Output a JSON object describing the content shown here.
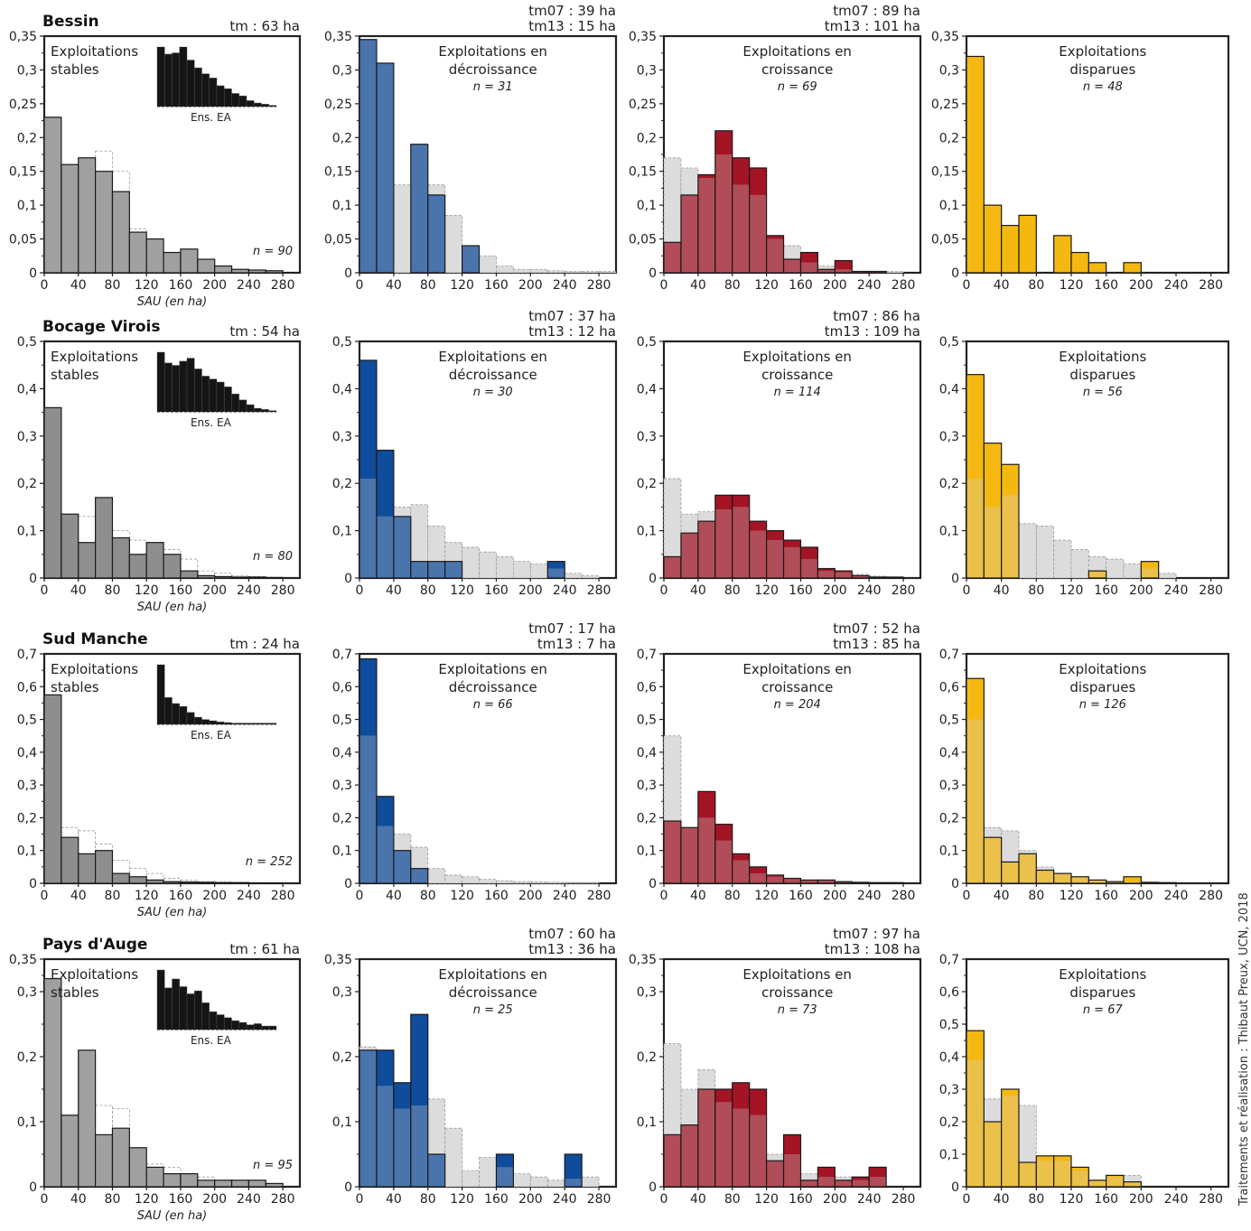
{
  "credit": "Traitements et réalisation : Thibaut Preux, UCN, 2018",
  "chart_data": [
    {
      "type": "bar",
      "row": 0,
      "col": 0,
      "region": "Bessin",
      "tm_lines": [
        "tm : 63 ha"
      ],
      "title": [
        "Exploitations",
        "stables"
      ],
      "title_align": "start",
      "n": "n = 90",
      "xlabel": "SAU (en ha)",
      "inset_label": "Ens. EA",
      "xticks": [
        0,
        40,
        80,
        120,
        160,
        200,
        240,
        280
      ],
      "xlim": [
        0,
        300
      ],
      "ylim": [
        0,
        0.35
      ],
      "yticks": [
        "0",
        "0,05",
        "0,1",
        "0,15",
        "0,2",
        "0,25",
        "0,3",
        "0,35"
      ],
      "color": "#a0a0a0",
      "bin_width": 20,
      "values": [
        0.23,
        0.16,
        0.17,
        0.15,
        0.12,
        0.06,
        0.05,
        0.03,
        0.035,
        0.02,
        0.01,
        0.005,
        0.004,
        0.003
      ],
      "reference": [
        0.23,
        0.16,
        0.17,
        0.18,
        0.15,
        0.065,
        0.05,
        0.03,
        0.035,
        0.02,
        0.01,
        0.005,
        0.004,
        0.003
      ],
      "inset": [
        1.0,
        0.88,
        0.9,
        1.0,
        0.78,
        0.65,
        0.55,
        0.48,
        0.35,
        0.3,
        0.22,
        0.18,
        0.1,
        0.06,
        0.04,
        0.02
      ]
    },
    {
      "type": "bar",
      "row": 0,
      "col": 1,
      "tm_lines": [
        "tm07 : 39 ha",
        "tm13 : 15 ha"
      ],
      "title": [
        "Exploitations en",
        "décroissance"
      ],
      "n": "n = 31",
      "xticks": [
        0,
        40,
        80,
        120,
        160,
        200,
        240,
        280
      ],
      "xlim": [
        0,
        300
      ],
      "ylim": [
        0,
        0.35
      ],
      "yticks": [
        "0",
        "0,05",
        "0,1",
        "0,15",
        "0,2",
        "0,25",
        "0,3",
        "0,35"
      ],
      "color": "#0f4c9c",
      "values": [
        0.345,
        0.31,
        0,
        0.19,
        0.115,
        0,
        0.04,
        0,
        0,
        0,
        0,
        0,
        0,
        0,
        0
      ],
      "reference": [
        0.345,
        0.31,
        0.13,
        0.19,
        0.13,
        0.085,
        0.04,
        0.025,
        0.01,
        0.005,
        0.005,
        0.003,
        0.002,
        0.002,
        0.002
      ]
    },
    {
      "type": "bar",
      "row": 0,
      "col": 2,
      "tm_lines": [
        "tm07 : 89 ha",
        "tm13 : 101 ha"
      ],
      "title": [
        "Exploitations en",
        "croissance"
      ],
      "n": "n = 69",
      "xticks": [
        0,
        40,
        80,
        120,
        160,
        200,
        240,
        280
      ],
      "xlim": [
        0,
        300
      ],
      "ylim": [
        0,
        0.35
      ],
      "yticks": [
        "0",
        "0,05",
        "0,1",
        "0,15",
        "0,2",
        "0,25",
        "0,3",
        "0,35"
      ],
      "color": "#a31424",
      "values": [
        0.045,
        0.115,
        0.145,
        0.21,
        0.17,
        0.155,
        0.055,
        0.02,
        0.03,
        0.005,
        0.018,
        0.002,
        0.002,
        0
      ],
      "reference": [
        0.17,
        0.155,
        0.14,
        0.175,
        0.13,
        0.115,
        0.05,
        0.04,
        0.015,
        0.01,
        0.005,
        0.002,
        0.002,
        0.002
      ]
    },
    {
      "type": "bar",
      "row": 0,
      "col": 3,
      "tm_lines": [],
      "title": [
        "Exploitations",
        "disparues"
      ],
      "n": "n = 48",
      "xticks": [
        0,
        40,
        80,
        120,
        160,
        200,
        240,
        280
      ],
      "xlim": [
        0,
        300
      ],
      "ylim": [
        0,
        0.35
      ],
      "yticks": [
        "0",
        "0,05",
        "0,1",
        "0,15",
        "0,2",
        "0,25",
        "0,3",
        "0,35"
      ],
      "color": "#f5b811",
      "values": [
        0.32,
        0.1,
        0.07,
        0.085,
        0,
        0.055,
        0.03,
        0.015,
        0,
        0.015,
        0,
        0,
        0,
        0
      ],
      "reference": [
        0,
        0,
        0,
        0,
        0,
        0,
        0,
        0,
        0,
        0,
        0,
        0,
        0,
        0
      ]
    },
    {
      "type": "bar",
      "row": 1,
      "col": 0,
      "region": "Bocage Virois",
      "tm_lines": [
        "tm : 54 ha"
      ],
      "title": [
        "Exploitations",
        "stables"
      ],
      "title_align": "start",
      "n": "n = 80",
      "xlabel": "SAU (en ha)",
      "inset_label": "Ens. EA",
      "xticks": [
        0,
        40,
        80,
        120,
        160,
        200,
        240,
        280
      ],
      "xlim": [
        0,
        300
      ],
      "ylim": [
        0,
        0.5
      ],
      "yticks": [
        "0",
        "0,1",
        "0,2",
        "0,3",
        "0,4",
        "0,5"
      ],
      "color": "#8e8e8e",
      "values": [
        0.36,
        0.135,
        0.075,
        0.17,
        0.085,
        0.05,
        0.075,
        0.05,
        0.015,
        0.005,
        0.003,
        0.002,
        0.002,
        0.001
      ],
      "reference": [
        0.21,
        0.135,
        0.13,
        0.17,
        0.1,
        0.08,
        0.075,
        0.06,
        0.04,
        0.015,
        0.01,
        0.005,
        0.003,
        0.002
      ],
      "inset": [
        1.0,
        0.82,
        0.78,
        0.85,
        0.9,
        0.72,
        0.6,
        0.55,
        0.5,
        0.42,
        0.3,
        0.2,
        0.12,
        0.06,
        0.04,
        0.02
      ]
    },
    {
      "type": "bar",
      "row": 1,
      "col": 1,
      "tm_lines": [
        "tm07 : 37 ha",
        "tm13 : 12 ha"
      ],
      "title": [
        "Exploitations en",
        "décroissance"
      ],
      "n": "n = 30",
      "xticks": [
        0,
        40,
        80,
        120,
        160,
        200,
        240,
        280
      ],
      "xlim": [
        0,
        300
      ],
      "ylim": [
        0,
        0.5
      ],
      "yticks": [
        "0",
        "0,1",
        "0,2",
        "0,3",
        "0,4",
        "0,5"
      ],
      "color": "#0f4c9c",
      "values": [
        0.46,
        0.27,
        0.13,
        0.035,
        0.035,
        0.035,
        0,
        0,
        0,
        0,
        0,
        0.035,
        0,
        0
      ],
      "reference": [
        0.21,
        0.13,
        0.15,
        0.155,
        0.11,
        0.075,
        0.065,
        0.055,
        0.045,
        0.035,
        0.03,
        0.02,
        0.01,
        0.005
      ]
    },
    {
      "type": "bar",
      "row": 1,
      "col": 2,
      "tm_lines": [
        "tm07 : 86 ha",
        "tm13 : 109 ha"
      ],
      "title": [
        "Exploitations en",
        "croissance"
      ],
      "n": "n = 114",
      "xticks": [
        0,
        40,
        80,
        120,
        160,
        200,
        240,
        280
      ],
      "xlim": [
        0,
        300
      ],
      "ylim": [
        0,
        0.5
      ],
      "yticks": [
        "0",
        "0,1",
        "0,2",
        "0,3",
        "0,4",
        "0,5"
      ],
      "color": "#a31424",
      "values": [
        0.045,
        0.095,
        0.12,
        0.175,
        0.175,
        0.12,
        0.1,
        0.08,
        0.065,
        0.02,
        0.015,
        0.005,
        0.002,
        0.002
      ],
      "reference": [
        0.21,
        0.135,
        0.14,
        0.145,
        0.15,
        0.1,
        0.08,
        0.065,
        0.04,
        0.015,
        0.012,
        0.008,
        0.004,
        0.002
      ]
    },
    {
      "type": "bar",
      "row": 1,
      "col": 3,
      "tm_lines": [],
      "title": [
        "Exploitations",
        "disparues"
      ],
      "n": "n = 56",
      "xticks": [
        0,
        40,
        80,
        120,
        160,
        200,
        240,
        280
      ],
      "xlim": [
        0,
        300
      ],
      "ylim": [
        0,
        0.5
      ],
      "yticks": [
        "0",
        "0,1",
        "0,2",
        "0,3",
        "0,4",
        "0,5"
      ],
      "color": "#f5b811",
      "values": [
        0.43,
        0.285,
        0.24,
        0,
        0,
        0,
        0,
        0.015,
        0,
        0,
        0.035,
        0
      ],
      "reference": [
        0.21,
        0.15,
        0.175,
        0.115,
        0.11,
        0.08,
        0.06,
        0.045,
        0.04,
        0.03,
        0.02,
        0.01
      ]
    },
    {
      "type": "bar",
      "row": 2,
      "col": 0,
      "region": "Sud Manche",
      "tm_lines": [
        "tm : 24 ha"
      ],
      "title": [
        "Exploitations",
        "stables"
      ],
      "title_align": "start",
      "n": "n = 252",
      "xlabel": "SAU (en ha)",
      "inset_label": "Ens. EA",
      "xticks": [
        0,
        40,
        80,
        120,
        160,
        200,
        240,
        280
      ],
      "xlim": [
        0,
        300
      ],
      "ylim": [
        0,
        0.7
      ],
      "yticks": [
        "0",
        "0,1",
        "0,2",
        "0,3",
        "0,4",
        "0,5",
        "0,6",
        "0,7"
      ],
      "color": "#8e8e8e",
      "values": [
        0.575,
        0.14,
        0.09,
        0.1,
        0.03,
        0.02,
        0.01,
        0.005,
        0.004,
        0.003,
        0.002,
        0.002,
        0.001,
        0.001
      ],
      "reference": [
        0.45,
        0.17,
        0.16,
        0.12,
        0.07,
        0.045,
        0.03,
        0.015,
        0.01,
        0.005,
        0.004,
        0.003,
        0.002,
        0.001
      ],
      "inset": [
        1.0,
        0.45,
        0.35,
        0.3,
        0.2,
        0.12,
        0.08,
        0.06,
        0.04,
        0.03,
        0.02,
        0.02,
        0.02,
        0.02,
        0.02,
        0.02
      ]
    },
    {
      "type": "bar",
      "row": 2,
      "col": 1,
      "tm_lines": [
        "tm07 : 17 ha",
        "tm13 : 7 ha"
      ],
      "title": [
        "Exploitations en",
        "décroissance"
      ],
      "n": "n = 66",
      "xticks": [
        0,
        40,
        80,
        120,
        160,
        200,
        240,
        280
      ],
      "xlim": [
        0,
        300
      ],
      "ylim": [
        0,
        0.7
      ],
      "yticks": [
        "0",
        "0,1",
        "0,2",
        "0,3",
        "0,4",
        "0,5",
        "0,6",
        "0,7"
      ],
      "color": "#0f4c9c",
      "values": [
        0.685,
        0.265,
        0.1,
        0.045,
        0,
        0,
        0,
        0,
        0,
        0,
        0,
        0,
        0,
        0
      ],
      "reference": [
        0.45,
        0.175,
        0.15,
        0.11,
        0.045,
        0.025,
        0.02,
        0.012,
        0.008,
        0.005,
        0.004,
        0.003,
        0.002,
        0.002
      ]
    },
    {
      "type": "bar",
      "row": 2,
      "col": 2,
      "tm_lines": [
        "tm07 : 52 ha",
        "tm13 : 85 ha"
      ],
      "title": [
        "Exploitations en",
        "croissance"
      ],
      "n": "n = 204",
      "xticks": [
        0,
        40,
        80,
        120,
        160,
        200,
        240,
        280
      ],
      "xlim": [
        0,
        300
      ],
      "ylim": [
        0,
        0.7
      ],
      "yticks": [
        "0",
        "0,1",
        "0,2",
        "0,3",
        "0,4",
        "0,5",
        "0,6",
        "0,7"
      ],
      "color": "#a31424",
      "values": [
        0.19,
        0.17,
        0.28,
        0.18,
        0.09,
        0.05,
        0.025,
        0.015,
        0.01,
        0.01,
        0.005,
        0.003,
        0.002,
        0.002
      ],
      "reference": [
        0.45,
        0.17,
        0.2,
        0.13,
        0.07,
        0.03,
        0.02,
        0.015,
        0.01,
        0.008,
        0.005,
        0.003,
        0.002,
        0.002
      ]
    },
    {
      "type": "bar",
      "row": 2,
      "col": 3,
      "tm_lines": [],
      "title": [
        "Exploitations",
        "disparues"
      ],
      "n": "n = 126",
      "xticks": [
        0,
        40,
        80,
        120,
        160,
        200,
        240,
        280
      ],
      "xlim": [
        0,
        300
      ],
      "ylim": [
        0,
        0.7
      ],
      "yticks": [
        "0",
        "0,1",
        "0,2",
        "0,3",
        "0,4",
        "0,5",
        "0,6",
        "0,7"
      ],
      "color": "#f5b811",
      "values": [
        0.625,
        0.14,
        0.065,
        0.09,
        0.04,
        0.03,
        0.02,
        0.01,
        0.005,
        0.02,
        0.003,
        0.002
      ],
      "reference": [
        0.5,
        0.17,
        0.16,
        0.1,
        0.05,
        0.03,
        0.02,
        0.01,
        0.005,
        0.005,
        0.003,
        0.002
      ]
    },
    {
      "type": "bar",
      "row": 3,
      "col": 0,
      "region": "Pays d'Auge",
      "tm_lines": [
        "tm : 61 ha"
      ],
      "title": [
        "Exploitations",
        "stables"
      ],
      "title_align": "start",
      "n": "n = 95",
      "xlabel": "SAU (en ha)",
      "inset_label": "Ens. EA",
      "xticks": [
        0,
        40,
        80,
        120,
        160,
        200,
        240,
        280
      ],
      "xlim": [
        0,
        300
      ],
      "ylim": [
        0,
        0.35
      ],
      "yticks": [
        "0",
        "0,1",
        "0,2",
        "0,3",
        "0,35"
      ],
      "color": "#a0a0a0",
      "values": [
        0.32,
        0.11,
        0.21,
        0.08,
        0.09,
        0.06,
        0.03,
        0.02,
        0.02,
        0.01,
        0.01,
        0.01,
        0.01,
        0.005
      ],
      "reference": [
        0.22,
        0.11,
        0.19,
        0.125,
        0.12,
        0.06,
        0.035,
        0.03,
        0.02,
        0.015,
        0.01,
        0.01,
        0.01,
        0.005
      ],
      "inset": [
        1.0,
        0.7,
        0.85,
        0.72,
        0.6,
        0.65,
        0.45,
        0.3,
        0.25,
        0.2,
        0.15,
        0.12,
        0.08,
        0.1,
        0.06,
        0.06
      ]
    },
    {
      "type": "bar",
      "row": 3,
      "col": 1,
      "tm_lines": [
        "tm07 : 60 ha",
        "tm13 : 36 ha"
      ],
      "title": [
        "Exploitations en",
        "décroissance"
      ],
      "n": "n = 25",
      "xticks": [
        0,
        40,
        80,
        120,
        160,
        200,
        240,
        280
      ],
      "xlim": [
        0,
        300
      ],
      "ylim": [
        0,
        0.35
      ],
      "yticks": [
        "0",
        "0,1",
        "0,2",
        "0,3",
        "0,35"
      ],
      "color": "#0f4c9c",
      "values": [
        0.21,
        0.21,
        0.16,
        0.265,
        0.05,
        0,
        0,
        0,
        0.05,
        0,
        0,
        0,
        0.05,
        0
      ],
      "reference": [
        0.215,
        0.155,
        0.12,
        0.125,
        0.135,
        0.09,
        0.025,
        0.045,
        0.03,
        0.02,
        0.015,
        0.01,
        0.012,
        0.015
      ]
    },
    {
      "type": "bar",
      "row": 3,
      "col": 2,
      "tm_lines": [
        "tm07 : 97 ha",
        "tm13 : 108 ha"
      ],
      "title": [
        "Exploitations en",
        "croissance"
      ],
      "n": "n = 73",
      "xticks": [
        0,
        40,
        80,
        120,
        160,
        200,
        240,
        280
      ],
      "xlim": [
        0,
        300
      ],
      "ylim": [
        0,
        0.35
      ],
      "yticks": [
        "0",
        "0,1",
        "0,2",
        "0,3",
        "0,35"
      ],
      "color": "#a31424",
      "values": [
        0.08,
        0.095,
        0.15,
        0.15,
        0.16,
        0.15,
        0.04,
        0.08,
        0.01,
        0.03,
        0.01,
        0.015,
        0.03,
        0
      ],
      "reference": [
        0.22,
        0.15,
        0.18,
        0.13,
        0.12,
        0.11,
        0.05,
        0.05,
        0.02,
        0.015,
        0.015,
        0.01,
        0.015,
        0
      ]
    },
    {
      "type": "bar",
      "row": 3,
      "col": 3,
      "tm_lines": [],
      "title": [
        "Exploitations",
        "disparues"
      ],
      "n": "n = 67",
      "xticks": [
        0,
        40,
        80,
        120,
        160,
        200,
        240,
        280
      ],
      "xlim": [
        0,
        300
      ],
      "ylim": [
        0,
        0.7
      ],
      "yticks": [
        "0",
        "0,1",
        "0,2",
        "0,3",
        "0,4",
        "0,5",
        "0,6",
        "0,7"
      ],
      "color": "#f5b811",
      "values": [
        0.48,
        0.2,
        0.3,
        0.075,
        0.095,
        0.095,
        0.06,
        0.02,
        0.035,
        0.015
      ],
      "reference": [
        0.39,
        0.27,
        0.28,
        0.25,
        0.08,
        0.08,
        0.05,
        0.02,
        0.03,
        0.035
      ]
    }
  ]
}
